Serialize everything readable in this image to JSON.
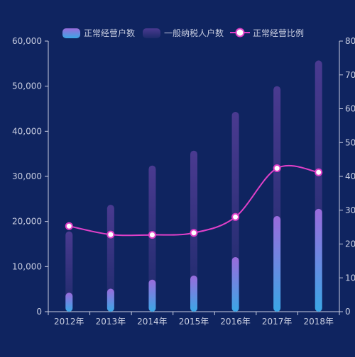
{
  "chart_data": {
    "type": "bar",
    "categories": [
      "2012年",
      "2013年",
      "2014年",
      "2015年",
      "2016年",
      "2017年",
      "2018年"
    ],
    "series": [
      {
        "name": "正常经营户数",
        "type": "bar",
        "axis": "left",
        "values": [
          4200,
          5100,
          7100,
          8000,
          12100,
          21200,
          22800
        ]
      },
      {
        "name": "一般纳税人户数",
        "type": "bar",
        "axis": "left",
        "values": [
          17800,
          23700,
          32400,
          35700,
          44300,
          50000,
          55700
        ]
      },
      {
        "name": "正常经营比例",
        "type": "line",
        "axis": "right",
        "values": [
          25.3,
          22.8,
          22.7,
          23.3,
          28.0,
          42.4,
          41.2
        ]
      }
    ],
    "left_axis": {
      "ylim": [
        0,
        60000
      ],
      "ticks": [
        "0",
        "10,000",
        "20,000",
        "30,000",
        "40,000",
        "50,000",
        "60,000"
      ]
    },
    "right_axis": {
      "ylim": [
        0,
        80
      ],
      "ticks": [
        "0",
        "10",
        "20",
        "30",
        "40",
        "50",
        "60",
        "70",
        "80"
      ]
    },
    "legend_position": "top-center",
    "grid": false,
    "colors": {
      "background": "#0f2460",
      "bar1_top": "#9a6bdc",
      "bar1_bottom": "#3aa7e6",
      "bar2_top": "#4a3a90",
      "bar2_bottom": "#1c2a6a",
      "line": "#e040c8",
      "axis_text": "#c8cde0",
      "axis_line": "#c8cde0"
    }
  }
}
